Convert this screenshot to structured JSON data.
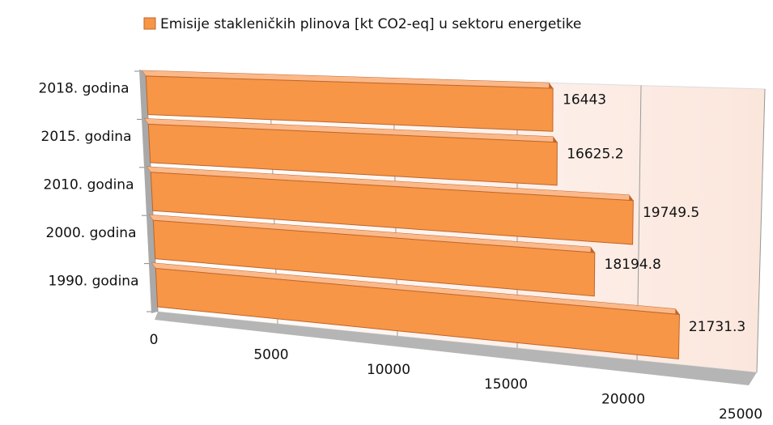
{
  "chart_data": {
    "type": "bar3d",
    "series": [
      {
        "name": "Emisije stakleničkih plinova [kt CO2-eq] u sektoru energetike",
        "color": "#f79646",
        "values": [
          21731.3,
          18194.8,
          19749.5,
          16625.2,
          16443
        ]
      }
    ],
    "categories": [
      "1990. godina",
      "2000. godina",
      "2010. godina",
      "2015. godina",
      "2018. godina"
    ],
    "xlim": [
      0,
      25000
    ],
    "xticks": [
      0,
      5000,
      10000,
      15000,
      20000,
      25000
    ],
    "grid": true,
    "legend": "top"
  }
}
